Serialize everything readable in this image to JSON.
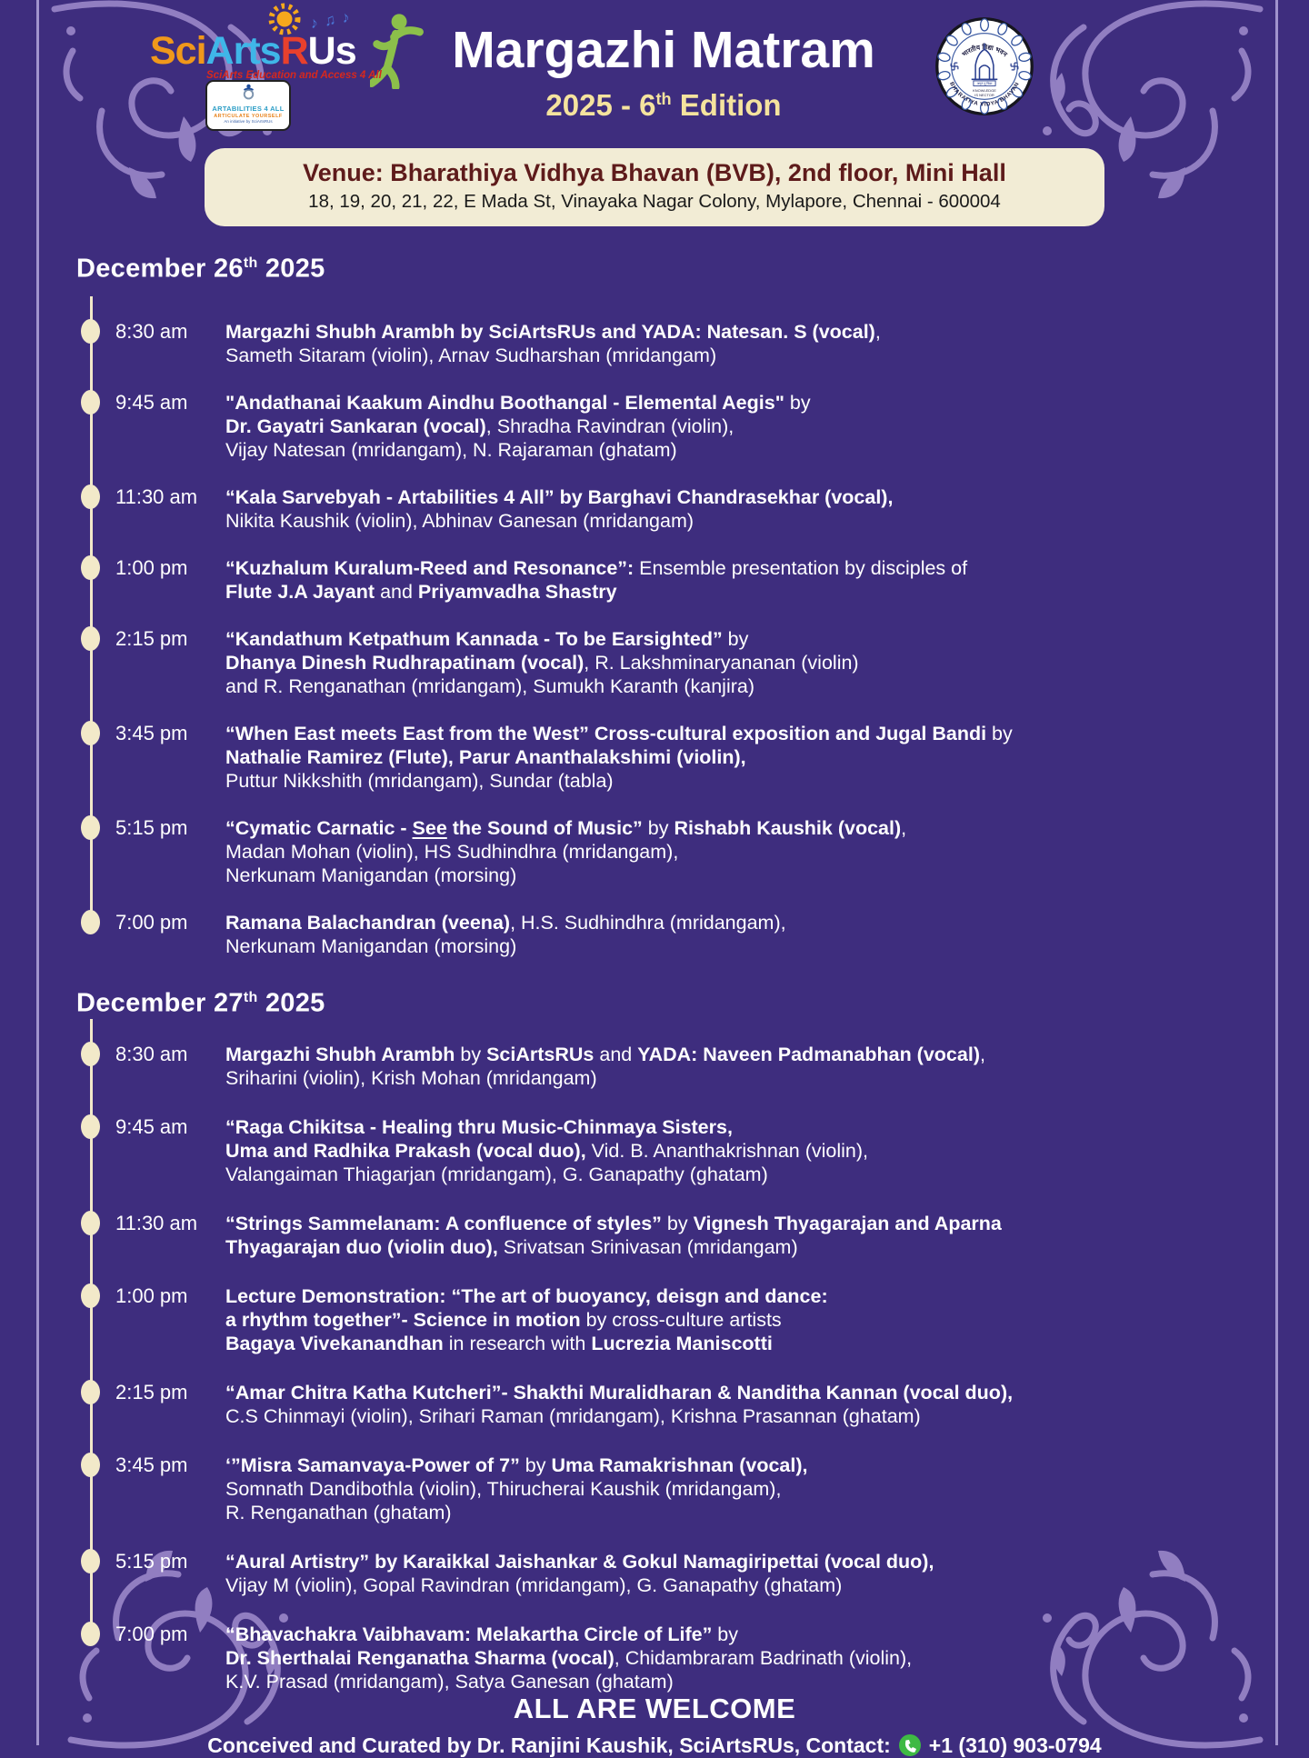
{
  "colors": {
    "background": "#3E2D7E",
    "flourish": "#9B87C9",
    "edge_line": "#AC9FD6",
    "timeline_cream": "#F2E9C9",
    "venue_bg": "#F2ECD5",
    "venue_title": "#5E1B1B",
    "edition_text": "#F5E39E",
    "phone_green": "#3FB944",
    "logo_sci": "#F0981B",
    "logo_arts": "#3FB6E8",
    "logo_r": "#E8402D",
    "dancer_green": "#8CBF4A"
  },
  "header": {
    "logo": {
      "sci": "Sci",
      "arts": "Arts",
      "r": "R",
      "us": "Us",
      "notes": "♪♫♪",
      "tagline": "SciArts Education and Access 4 All"
    },
    "artabilities": {
      "title": "ARTABILITIES 4 ALL",
      "subtitle": "ARTICULATE YOURSELF",
      "note": "An initiative by SciArtsRUs"
    },
    "title": "Margazhi Matram",
    "edition_prefix": "2025 - 6",
    "edition_sup": "th",
    "edition_suffix": " Edition",
    "bvb": {
      "top_text": "भारतीय विद्या भवन",
      "band_text": "अमृतं तु विद्या",
      "motto_line1": "KNOWLEDGE",
      "motto_line2": "IS NECTOR",
      "bottom_text": "BHARATIYA VIDYA BHAVAN"
    }
  },
  "venue": {
    "line1": "Venue: Bharathiya Vidhya Bhavan (BVB), 2nd floor, Mini Hall",
    "line2": "18, 19, 20, 21, 22, E Mada St, Vinayaka Nagar Colony, Mylapore, Chennai - 600004"
  },
  "days": [
    {
      "date_prefix": "December 26",
      "date_sup": "th",
      "date_suffix": " 2025",
      "events": [
        {
          "time": "8:30 am",
          "lines": [
            [
              {
                "t": "Margazhi Shubh Arambh by SciArtsRUs and YADA: Natesan. S (vocal)",
                "b": true
              },
              {
                "t": ",",
                "b": false
              }
            ],
            [
              {
                "t": "Sameth Sitaram (violin), Arnav Sudharshan (mridangam)",
                "b": false
              }
            ]
          ]
        },
        {
          "time": "9:45 am",
          "lines": [
            [
              {
                "t": "\"Andathanai Kaakum Aindhu Boothangal - Elemental Aegis\"",
                "b": true
              },
              {
                "t": " by",
                "b": false
              }
            ],
            [
              {
                "t": "Dr. Gayatri Sankaran (vocal)",
                "b": true
              },
              {
                "t": ", Shradha Ravindran (violin),",
                "b": false
              }
            ],
            [
              {
                "t": "Vijay Natesan (mridangam), N. Rajaraman (ghatam)",
                "b": false
              }
            ]
          ]
        },
        {
          "time": "11:30 am",
          "lines": [
            [
              {
                "t": "“Kala Sarvebyah - Artabilities 4 All” by Barghavi Chandrasekhar (vocal),",
                "b": true
              }
            ],
            [
              {
                "t": "Nikita Kaushik (violin),  Abhinav Ganesan (mridangam)",
                "b": false
              }
            ]
          ]
        },
        {
          "time": "1:00 pm",
          "lines": [
            [
              {
                "t": "“Kuzhalum Kuralum-Reed and Resonance”:",
                "b": true
              },
              {
                "t": " Ensemble presentation by disciples of",
                "b": false
              }
            ],
            [
              {
                "t": "Flute J.A Jayant",
                "b": true
              },
              {
                "t": " and ",
                "b": false
              },
              {
                "t": "Priyamvadha Shastry",
                "b": true
              }
            ]
          ]
        },
        {
          "time": "2:15 pm",
          "lines": [
            [
              {
                "t": "“Kandathum Ketpathum Kannada - To be Earsighted”",
                "b": true
              },
              {
                "t": " by",
                "b": false
              }
            ],
            [
              {
                "t": "Dhanya Dinesh Rudhrapatinam (vocal)",
                "b": true
              },
              {
                "t": ", R. Lakshminaryananan (violin)",
                "b": false
              }
            ],
            [
              {
                "t": "and R. Renganathan (mridangam), Sumukh Karanth (kanjira)",
                "b": false
              }
            ]
          ]
        },
        {
          "time": "3:45 pm",
          "lines": [
            [
              {
                "t": "“When East meets East from the West” Cross-cultural exposition and Jugal Bandi",
                "b": true
              },
              {
                "t": " by",
                "b": false
              }
            ],
            [
              {
                "t": "Nathalie Ramirez (Flute), Parur Ananthalakshimi (violin),",
                "b": true
              }
            ],
            [
              {
                "t": "Puttur Nikkshith (mridangam), Sundar (tabla)",
                "b": false
              }
            ]
          ]
        },
        {
          "time": "5:15 pm",
          "lines": [
            [
              {
                "t": "“Cymatic Carnatic - ",
                "b": true
              },
              {
                "t": "See",
                "b": true,
                "u": true
              },
              {
                "t": " the Sound of Music”",
                "b": true
              },
              {
                "t": " by ",
                "b": false
              },
              {
                "t": "Rishabh Kaushik (vocal)",
                "b": true
              },
              {
                "t": ",",
                "b": false
              }
            ],
            [
              {
                "t": "Madan Mohan (violin), HS Sudhindhra (mridangam),",
                "b": false
              }
            ],
            [
              {
                "t": "Nerkunam Manigandan (morsing)",
                "b": false
              }
            ]
          ]
        },
        {
          "time": "7:00 pm",
          "lines": [
            [
              {
                "t": "Ramana Balachandran (veena)",
                "b": true
              },
              {
                "t": ", H.S. Sudhindhra (mridangam),",
                "b": false
              }
            ],
            [
              {
                "t": "Nerkunam Manigandan (morsing)",
                "b": false
              }
            ]
          ]
        }
      ]
    },
    {
      "date_prefix": "December 27",
      "date_sup": "th",
      "date_suffix": " 2025",
      "events": [
        {
          "time": "8:30 am",
          "lines": [
            [
              {
                "t": "Margazhi Shubh Arambh",
                "b": true
              },
              {
                "t": " by ",
                "b": false
              },
              {
                "t": "SciArtsRUs",
                "b": true
              },
              {
                "t": " and ",
                "b": false
              },
              {
                "t": "YADA: Naveen Padmanabhan (vocal)",
                "b": true
              },
              {
                "t": ",",
                "b": false
              }
            ],
            [
              {
                "t": "Sriharini (violin), Krish Mohan (mridangam)",
                "b": false
              }
            ]
          ]
        },
        {
          "time": "9:45 am",
          "lines": [
            [
              {
                "t": "“Raga Chikitsa - Healing thru Music-Chinmaya Sisters,",
                "b": true
              }
            ],
            [
              {
                "t": "Uma and Radhika Prakash (vocal duo),",
                "b": true
              },
              {
                "t": " Vid. B. Ananthakrishnan (violin),",
                "b": false
              }
            ],
            [
              {
                "t": "Valangaiman Thiagarjan (mridangam), G. Ganapathy (ghatam)",
                "b": false
              }
            ]
          ]
        },
        {
          "time": "11:30 am",
          "lines": [
            [
              {
                "t": "“Strings Sammelanam: A confluence of styles”",
                "b": true
              },
              {
                "t": " by ",
                "b": false
              },
              {
                "t": "Vignesh Thyagarajan and Aparna",
                "b": true
              }
            ],
            [
              {
                "t": "Thyagarajan duo (violin duo),",
                "b": true
              },
              {
                "t": " Srivatsan Srinivasan (mridangam)",
                "b": false
              }
            ]
          ]
        },
        {
          "time": "1:00 pm",
          "lines": [
            [
              {
                "t": "Lecture Demonstration: “The art of buoyancy, deisgn and dance:",
                "b": true
              }
            ],
            [
              {
                "t": "a rhythm together”- Science in motion",
                "b": true
              },
              {
                "t": " by cross-culture artists",
                "b": false
              }
            ],
            [
              {
                "t": "Bagaya Vivekanandhan",
                "b": true
              },
              {
                "t": " in research with ",
                "b": false
              },
              {
                "t": "Lucrezia Maniscotti",
                "b": true
              }
            ]
          ]
        },
        {
          "time": "2:15 pm",
          "lines": [
            [
              {
                "t": "“Amar Chitra Katha Kutcheri”- Shakthi Muralidharan & Nanditha Kannan (vocal duo),",
                "b": true
              }
            ],
            [
              {
                "t": "C.S Chinmayi (violin), Srihari Raman (mridangam), Krishna Prasannan (ghatam)",
                "b": false
              }
            ]
          ]
        },
        {
          "time": "3:45 pm",
          "lines": [
            [
              {
                "t": "‘”Misra Samanvaya-Power of 7”",
                "b": true
              },
              {
                "t": " by ",
                "b": false
              },
              {
                "t": "Uma Ramakrishnan (vocal),",
                "b": true
              }
            ],
            [
              {
                "t": "Somnath Dandibothla (violin), Thirucherai Kaushik (mridangam),",
                "b": false
              }
            ],
            [
              {
                "t": "R. Renganathan (ghatam)",
                "b": false
              }
            ]
          ]
        },
        {
          "time": "5:15 pm",
          "lines": [
            [
              {
                "t": "“Aural Artistry” by Karaikkal Jaishankar & Gokul Namagiripettai (vocal duo),",
                "b": true
              }
            ],
            [
              {
                "t": "Vijay M (violin), Gopal Ravindran (mridangam), G. Ganapathy (ghatam)",
                "b": false
              }
            ]
          ]
        },
        {
          "time": "7:00 pm",
          "lines": [
            [
              {
                "t": "“Bhavachakra Vaibhavam: Melakartha Circle of Life”",
                "b": true
              },
              {
                "t": " by",
                "b": false
              }
            ],
            [
              {
                "t": "Dr. Sherthalai Renganatha Sharma (vocal)",
                "b": true
              },
              {
                "t": ", Chidambraram Badrinath (violin),",
                "b": false
              }
            ],
            [
              {
                "t": "K.V. Prasad (mridangam), Satya Ganesan (ghatam)",
                "b": false
              }
            ]
          ]
        }
      ]
    }
  ],
  "footer": {
    "welcome": "ALL ARE WELCOME",
    "credit": "Conceived and Curated by Dr. Ranjini Kaushik, SciArtsRUs, Contact:",
    "phone": "+1 (310) 903-0794"
  }
}
